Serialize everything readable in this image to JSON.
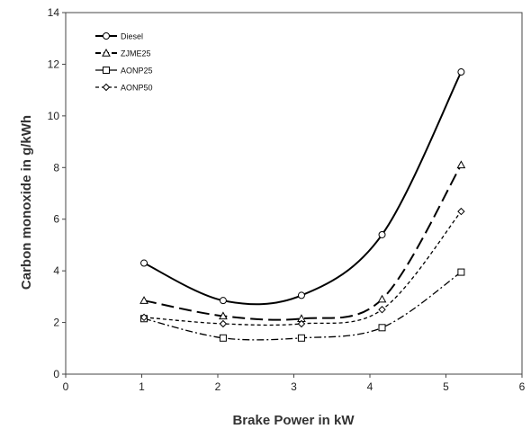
{
  "chart_data": {
    "type": "line",
    "xlabel": "Brake Power in kW",
    "ylabel": "Carbon monoxide in g/kWh",
    "xlim": [
      0,
      6
    ],
    "ylim": [
      0,
      14
    ],
    "x_ticks": [
      "0",
      "1",
      "2",
      "3",
      "4",
      "5",
      "6"
    ],
    "y_ticks": [
      "0",
      "2",
      "4",
      "6",
      "8",
      "10",
      "12",
      "14"
    ],
    "grid": false,
    "legend_position": "top-left",
    "series": [
      {
        "name": "Diesel",
        "marker": "circle",
        "dash": "solid",
        "color": "#000000",
        "x": [
          1.03,
          2.07,
          3.1,
          4.16,
          5.2
        ],
        "y": [
          4.3,
          2.85,
          3.05,
          5.4,
          11.7
        ]
      },
      {
        "name": "ZJME25",
        "marker": "triangle",
        "dash": "long-dash",
        "color": "#000000",
        "x": [
          1.03,
          2.07,
          3.1,
          4.16,
          5.2
        ],
        "y": [
          2.85,
          2.25,
          2.15,
          2.9,
          8.1
        ]
      },
      {
        "name": "AONP25",
        "marker": "square",
        "dash": "dash-dot",
        "color": "#000000",
        "x": [
          1.03,
          2.07,
          3.1,
          4.16,
          5.2
        ],
        "y": [
          2.15,
          1.4,
          1.4,
          1.8,
          3.95
        ]
      },
      {
        "name": "AONP50",
        "marker": "diamond",
        "dash": "short-dash",
        "color": "#000000",
        "x": [
          1.03,
          2.07,
          3.1,
          4.16,
          5.2
        ],
        "y": [
          2.2,
          1.95,
          1.95,
          2.5,
          6.3
        ]
      }
    ]
  }
}
